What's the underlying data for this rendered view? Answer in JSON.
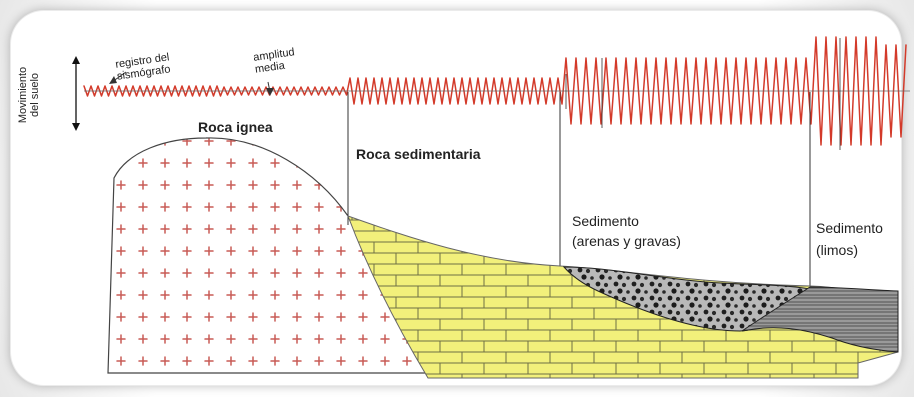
{
  "labels": {
    "seismograph_record": "registro del\nsismógrafo",
    "amplitude": "amplitud\nmedia",
    "ground_motion": "Movimiento\ndel suelo",
    "igneous": "Roca ignea",
    "sedimentary": "Roca sedimentaria",
    "sand_gravel": "Sedimento\n(arenas y gravas)",
    "silts": "Sedimento\n(limos)"
  },
  "colors": {
    "wave": "#d33a2a",
    "igneous_plus": "#c85b55",
    "sedimentary": "#f2f07b",
    "sedimentary_line": "#6f6f45",
    "gravel": "#b9b9b9",
    "silt": "#8e8e8e",
    "outline": "#444444"
  }
}
